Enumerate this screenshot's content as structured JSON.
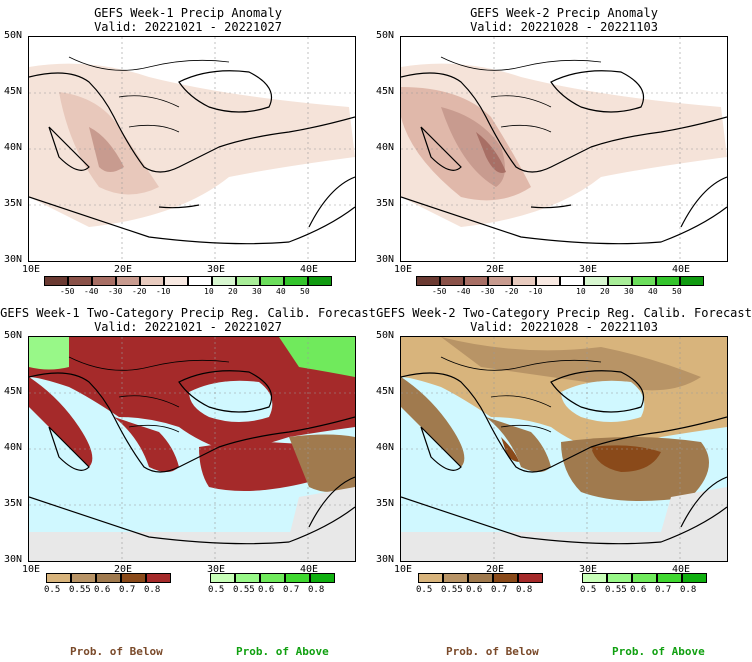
{
  "panels": [
    {
      "title": "GEFS Week-1 Precip Anomaly",
      "valid": "Valid: 20221021 - 20221027",
      "type": "anomaly"
    },
    {
      "title": "GEFS Week-2 Precip Anomaly",
      "valid": "Valid: 20221028 - 20221103",
      "type": "anomaly"
    },
    {
      "title": "GEFS Week-1 Two-Category Precip Reg. Calib. Forecast",
      "valid": "Valid: 20221021 - 20221027",
      "type": "prob"
    },
    {
      "title": "GEFS Week-2 Two-Category Precip Reg. Calib. Forecast",
      "valid": "Valid: 20221028 - 20221103",
      "type": "prob"
    }
  ],
  "lat_labels": [
    "50N",
    "45N",
    "40N",
    "35N",
    "30N"
  ],
  "lon_labels": [
    "10E",
    "20E",
    "30E",
    "40E"
  ],
  "anomaly_scale": {
    "labels": [
      "-50",
      "-40",
      "-30",
      "-20",
      "-10",
      "10",
      "20",
      "30",
      "40",
      "50"
    ],
    "colors": [
      "#6b3a32",
      "#8a5249",
      "#a86f65",
      "#c89b8f",
      "#e8cbbf",
      "#f8e9e2",
      "#ffffff",
      "#d8f7d0",
      "#a8ed98",
      "#6cde5c",
      "#34c42c",
      "#109a10"
    ]
  },
  "below_scale": {
    "labels": [
      "0.5",
      "0.55",
      "0.6",
      "0.7",
      "0.8"
    ],
    "colors": [
      "#d8b47c",
      "#b89466",
      "#a07a4e",
      "#8a4a1a",
      "#a52a2a"
    ]
  },
  "above_scale": {
    "labels": [
      "0.5",
      "0.55",
      "0.6",
      "0.7",
      "0.8"
    ],
    "colors": [
      "#c8ffb8",
      "#98f888",
      "#70ea5c",
      "#40d830",
      "#10b010"
    ]
  },
  "bottom": {
    "below": "Prob. of Below",
    "above": "Prob. of Above",
    "below_color": "#7a4a2a",
    "above_color": "#10a010"
  }
}
